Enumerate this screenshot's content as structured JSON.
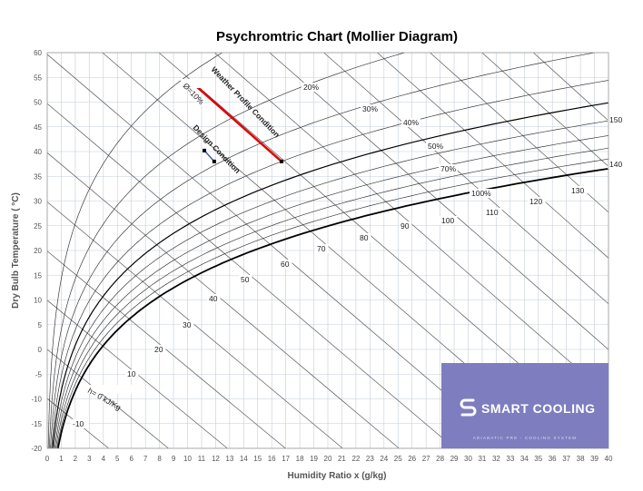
{
  "chart_data": {
    "type": "line",
    "title": "Psychromtric Chart (Mollier Diagram)",
    "xlabel": "Humidity Ratio x (g/kg)",
    "ylabel": "Dry Bulb Temperature  ( °C)",
    "xlim": [
      0,
      40
    ],
    "ylim": [
      -20,
      60
    ],
    "x_ticks": [
      "0",
      "1",
      "2",
      "3",
      "4",
      "5",
      "6",
      "7",
      "8",
      "9",
      "10",
      "11",
      "12",
      "13",
      "14",
      "15",
      "16",
      "17",
      "18",
      "19",
      "20",
      "21",
      "22",
      "23",
      "24",
      "25",
      "26",
      "27",
      "28",
      "29",
      "30",
      "31",
      "32",
      "33",
      "34",
      "35",
      "36",
      "37",
      "38",
      "39",
      "40"
    ],
    "y_ticks": [
      "-20",
      "-15",
      "-10",
      "-5",
      "0",
      "5",
      "10",
      "15",
      "20",
      "25",
      "30",
      "35",
      "40",
      "45",
      "50",
      "55",
      "60"
    ],
    "grid": true,
    "relative_humidity_curves": [
      {
        "label": "Ø=10%",
        "value": 10
      },
      {
        "label": "20%",
        "value": 20
      },
      {
        "label": "30%",
        "value": 30
      },
      {
        "label": "40%",
        "value": 40
      },
      {
        "label": "50%",
        "value": 50
      },
      {
        "label": "60%",
        "value": 60
      },
      {
        "label": "70%",
        "value": 70
      },
      {
        "label": "80%",
        "value": 80
      },
      {
        "label": "90%",
        "value": 90
      },
      {
        "label": "100%",
        "value": 100
      }
    ],
    "enthalpy_lines": [
      {
        "label": "h= 0 kJ/Kg",
        "value": 0
      },
      {
        "label": "-10",
        "value": -10
      },
      {
        "label": "10",
        "value": 10
      },
      {
        "label": "20",
        "value": 20
      },
      {
        "label": "30",
        "value": 30
      },
      {
        "label": "40",
        "value": 40
      },
      {
        "label": "50",
        "value": 50
      },
      {
        "label": "60",
        "value": 60
      },
      {
        "label": "70",
        "value": 70
      },
      {
        "label": "80",
        "value": 80
      },
      {
        "label": "90",
        "value": 90
      },
      {
        "label": "100",
        "value": 100
      },
      {
        "label": "110",
        "value": 110
      },
      {
        "label": "120",
        "value": 120
      },
      {
        "label": "130",
        "value": 130
      },
      {
        "label": "140",
        "value": 140
      },
      {
        "label": "150",
        "value": 150
      }
    ],
    "series": [
      {
        "name": "Weather Profile Condition",
        "color": "#e00000",
        "x": [
          10.5,
          16.7
        ],
        "y": [
          53.5,
          38
        ]
      },
      {
        "name": "Design Condition",
        "color": "#2f5fb3",
        "x": [
          11.2,
          11.9
        ],
        "y": [
          40.2,
          38
        ]
      }
    ]
  },
  "logo": {
    "name": "SMART COOLING",
    "tagline": "ADIABATIC PRE - COOLING SYSTEM",
    "background": "#7d7dbf"
  }
}
